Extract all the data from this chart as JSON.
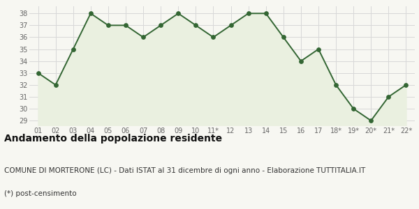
{
  "x_labels": [
    "01",
    "02",
    "03",
    "04",
    "05",
    "06",
    "07",
    "08",
    "09",
    "10",
    "11*",
    "12",
    "13",
    "14",
    "15",
    "16",
    "17",
    "18*",
    "19*",
    "20*",
    "21*",
    "22*"
  ],
  "y_values": [
    33,
    32,
    35,
    38,
    37,
    37,
    36,
    37,
    38,
    37,
    36,
    37,
    38,
    38,
    36,
    34,
    35,
    32,
    30,
    29,
    31,
    32
  ],
  "line_color": "#336633",
  "fill_color": "#eaf0e0",
  "marker_color": "#336633",
  "bg_color": "#f7f7f2",
  "grid_color": "#d8d8d8",
  "ylim_min": 28.6,
  "ylim_max": 38.6,
  "yticks": [
    29,
    30,
    31,
    32,
    33,
    34,
    35,
    36,
    37,
    38
  ],
  "fill_base": 28.5,
  "title": "Andamento della popolazione residente",
  "subtitle": "COMUNE DI MORTERONE (LC) - Dati ISTAT al 31 dicembre di ogni anno - Elaborazione TUTTITALIA.IT",
  "footnote": "(*) post-censimento",
  "title_fontsize": 10,
  "subtitle_fontsize": 7.5,
  "footnote_fontsize": 7.5
}
